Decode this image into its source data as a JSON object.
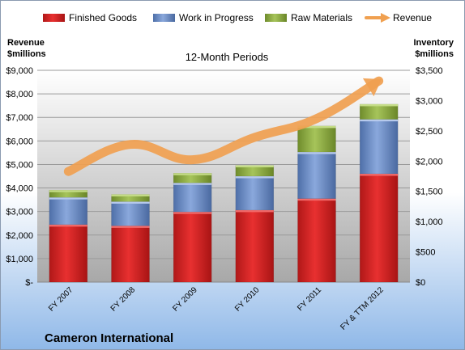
{
  "chart_data": {
    "type": "bar",
    "title": "12-Month Periods",
    "company": "Cameron International",
    "ylabel_left": [
      "Revenue",
      "$millions"
    ],
    "ylabel_right": [
      "Inventory",
      "$millions"
    ],
    "left_axis": {
      "min": 0,
      "max": 9000,
      "step": 1000,
      "tick_labels": [
        "$-",
        "$1,000",
        "$2,000",
        "$3,000",
        "$4,000",
        "$5,000",
        "$6,000",
        "$7,000",
        "$8,000",
        "$9,000"
      ]
    },
    "right_axis": {
      "min": 0,
      "max": 3500,
      "step": 500,
      "tick_labels": [
        "$0",
        "$500",
        "$1,000",
        "$1,500",
        "$2,000",
        "$2,500",
        "$3,000",
        "$3,500"
      ]
    },
    "categories": [
      "FY 2007",
      "FY 2008",
      "FY 2009",
      "FY 2010",
      "FY 2011",
      "FY & TTM 2012"
    ],
    "series": [
      {
        "name": "Finished Goods",
        "kind": "stacked-bar",
        "axis": "right",
        "color": "#dd2222",
        "values": [
          950,
          930,
          1160,
          1190,
          1380,
          1790
        ]
      },
      {
        "name": "Work in Progress",
        "kind": "stacked-bar",
        "axis": "right",
        "color": "#6d8fc9",
        "values": [
          450,
          400,
          480,
          560,
          770,
          900
        ]
      },
      {
        "name": "Raw Materials",
        "kind": "stacked-bar",
        "axis": "right",
        "color": "#93b245",
        "values": [
          120,
          120,
          160,
          180,
          430,
          250
        ]
      },
      {
        "name": "Revenue",
        "kind": "line",
        "axis": "left",
        "color": "#f0a050",
        "values": [
          4700,
          5850,
          5200,
          6150,
          6950,
          8550
        ]
      }
    ],
    "legend": "top",
    "grid": true
  }
}
